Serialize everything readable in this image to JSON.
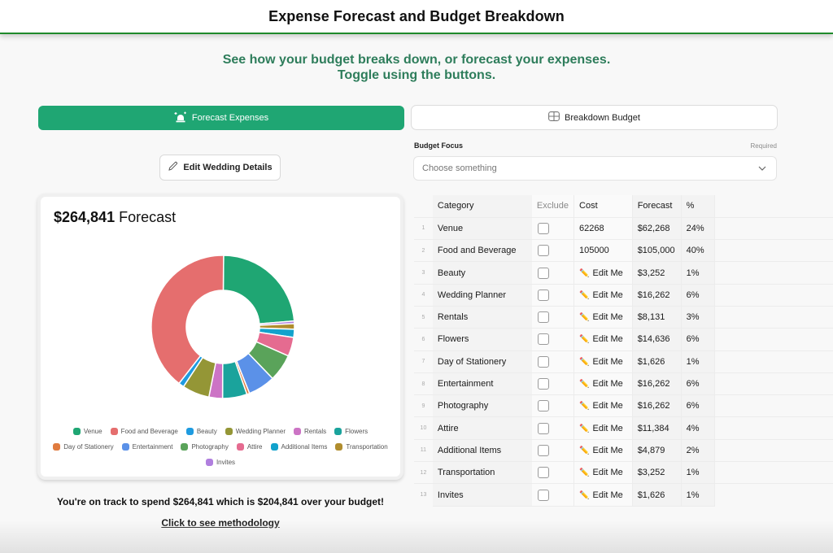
{
  "header": {
    "title": "Expense Forecast and Budget Breakdown"
  },
  "subtitle": {
    "line1": "See how your budget breaks down, or forecast your expenses.",
    "line2": "Toggle using the buttons."
  },
  "toggles": {
    "forecast_label": "Forecast Expenses",
    "forecast_icon": "siren-alert-icon",
    "breakdown_label": "Breakdown Budget",
    "breakdown_icon": "grid-table-icon",
    "active": "forecast"
  },
  "edit_button": {
    "label": "Edit Wedding Details",
    "icon": "pencil-icon"
  },
  "budget_focus": {
    "label": "Budget Focus",
    "required_text": "Required",
    "placeholder": "Choose something",
    "icon": "chevron-down-icon"
  },
  "chart_card": {
    "amount": "$264,841",
    "suffix": "Forecast"
  },
  "chart_data": {
    "type": "pie",
    "variant": "donut",
    "title": "$264,841 Forecast",
    "legend_position": "bottom",
    "categories": [
      "Venue",
      "Food and Beverage",
      "Beauty",
      "Wedding Planner",
      "Rentals",
      "Flowers",
      "Day of Stationery",
      "Entertainment",
      "Photography",
      "Attire",
      "Additional Items",
      "Transportation",
      "Invites"
    ],
    "values": [
      62268,
      105000,
      3252,
      16262,
      8131,
      14636,
      1626,
      16262,
      16262,
      11384,
      4879,
      3252,
      1626
    ],
    "colors": [
      "#1fa673",
      "#e56e6e",
      "#1e9be0",
      "#949636",
      "#cc74c5",
      "#1aa39c",
      "#e07b3f",
      "#5b91e8",
      "#5aa35a",
      "#e56b90",
      "#12a2cc",
      "#b08d2e",
      "#b07fde"
    ]
  },
  "summary": {
    "text": "You're on track to spend $264,841 which is $204,841 over your budget!",
    "link": "Click to see methodology"
  },
  "table": {
    "headers": {
      "category": "Category",
      "exclude": "Exclude",
      "cost": "Cost",
      "forecast": "Forecast",
      "pct": "%"
    },
    "edit_label": "Edit Me",
    "rows": [
      {
        "n": "1",
        "category": "Venue",
        "cost": "62268",
        "editable": false,
        "forecast": "$62,268",
        "pct": "24%"
      },
      {
        "n": "2",
        "category": "Food and Beverage",
        "cost": "105000",
        "editable": false,
        "forecast": "$105,000",
        "pct": "40%"
      },
      {
        "n": "3",
        "category": "Beauty",
        "cost": "Edit Me",
        "editable": true,
        "forecast": "$3,252",
        "pct": "1%"
      },
      {
        "n": "4",
        "category": "Wedding Planner",
        "cost": "Edit Me",
        "editable": true,
        "forecast": "$16,262",
        "pct": "6%"
      },
      {
        "n": "5",
        "category": "Rentals",
        "cost": "Edit Me",
        "editable": true,
        "forecast": "$8,131",
        "pct": "3%"
      },
      {
        "n": "6",
        "category": "Flowers",
        "cost": "Edit Me",
        "editable": true,
        "forecast": "$14,636",
        "pct": "6%"
      },
      {
        "n": "7",
        "category": "Day of Stationery",
        "cost": "Edit Me",
        "editable": true,
        "forecast": "$1,626",
        "pct": "1%"
      },
      {
        "n": "8",
        "category": "Entertainment",
        "cost": "Edit Me",
        "editable": true,
        "forecast": "$16,262",
        "pct": "6%"
      },
      {
        "n": "9",
        "category": "Photography",
        "cost": "Edit Me",
        "editable": true,
        "forecast": "$16,262",
        "pct": "6%"
      },
      {
        "n": "10",
        "category": "Attire",
        "cost": "Edit Me",
        "editable": true,
        "forecast": "$11,384",
        "pct": "4%"
      },
      {
        "n": "11",
        "category": "Additional Items",
        "cost": "Edit Me",
        "editable": true,
        "forecast": "$4,879",
        "pct": "2%"
      },
      {
        "n": "12",
        "category": "Transportation",
        "cost": "Edit Me",
        "editable": true,
        "forecast": "$3,252",
        "pct": "1%"
      },
      {
        "n": "13",
        "category": "Invites",
        "cost": "Edit Me",
        "editable": true,
        "forecast": "$1,626",
        "pct": "1%"
      }
    ]
  }
}
